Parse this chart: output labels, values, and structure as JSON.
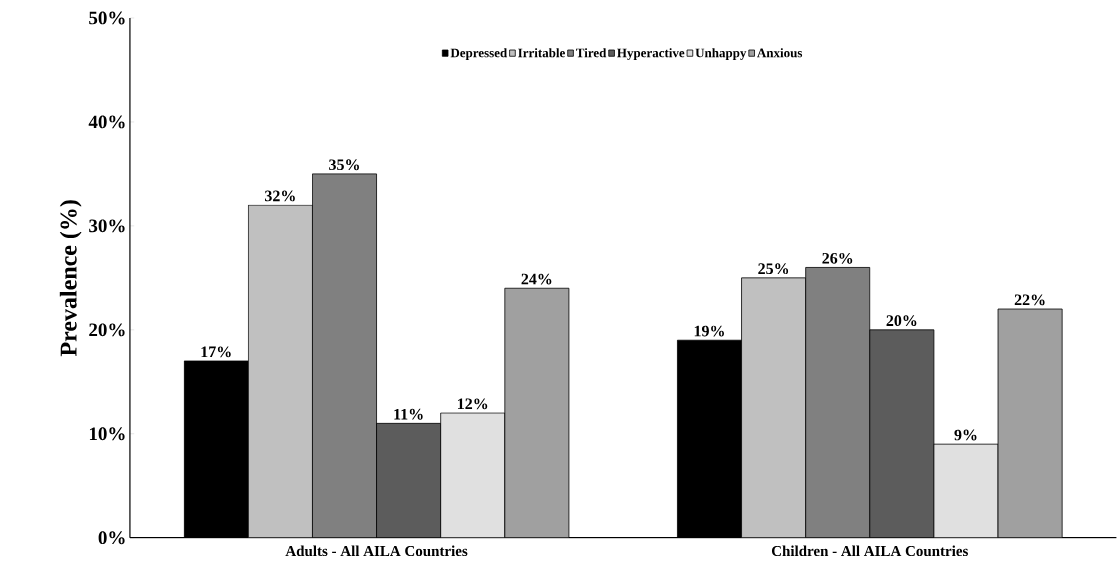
{
  "chart_data": {
    "type": "bar",
    "ylabel": "Prevalence (%)",
    "categories": [
      "Adults - All AILA Countries",
      "Children - All AILA Countries"
    ],
    "series": [
      {
        "name": "Depressed",
        "color": "#000000",
        "values": [
          17,
          19
        ],
        "value_labels": [
          "17%",
          "19%"
        ]
      },
      {
        "name": "Irritable",
        "color": "#c0c0c0",
        "values": [
          32,
          25
        ],
        "value_labels": [
          "32%",
          "25%"
        ]
      },
      {
        "name": "Tired",
        "color": "#808080",
        "values": [
          35,
          26
        ],
        "value_labels": [
          "35%",
          "26%"
        ]
      },
      {
        "name": "Hyperactive",
        "color": "#5c5c5c",
        "values": [
          11,
          20
        ],
        "value_labels": [
          "11%",
          "20%"
        ]
      },
      {
        "name": "Unhappy",
        "color": "#e0e0e0",
        "values": [
          12,
          9
        ],
        "value_labels": [
          "12%",
          "9%"
        ]
      },
      {
        "name": "Anxious",
        "color": "#a0a0a0",
        "values": [
          24,
          22
        ],
        "value_labels": [
          "24%",
          "22%"
        ]
      }
    ],
    "ylim": [
      0,
      50
    ],
    "yticks": [
      {
        "value": 0,
        "label": "0%"
      },
      {
        "value": 10,
        "label": "10%"
      },
      {
        "value": 20,
        "label": "20%"
      },
      {
        "value": 30,
        "label": "30%"
      },
      {
        "value": 40,
        "label": "40%"
      },
      {
        "value": 50,
        "label": "50%"
      }
    ],
    "grid": false,
    "legend": "top"
  }
}
